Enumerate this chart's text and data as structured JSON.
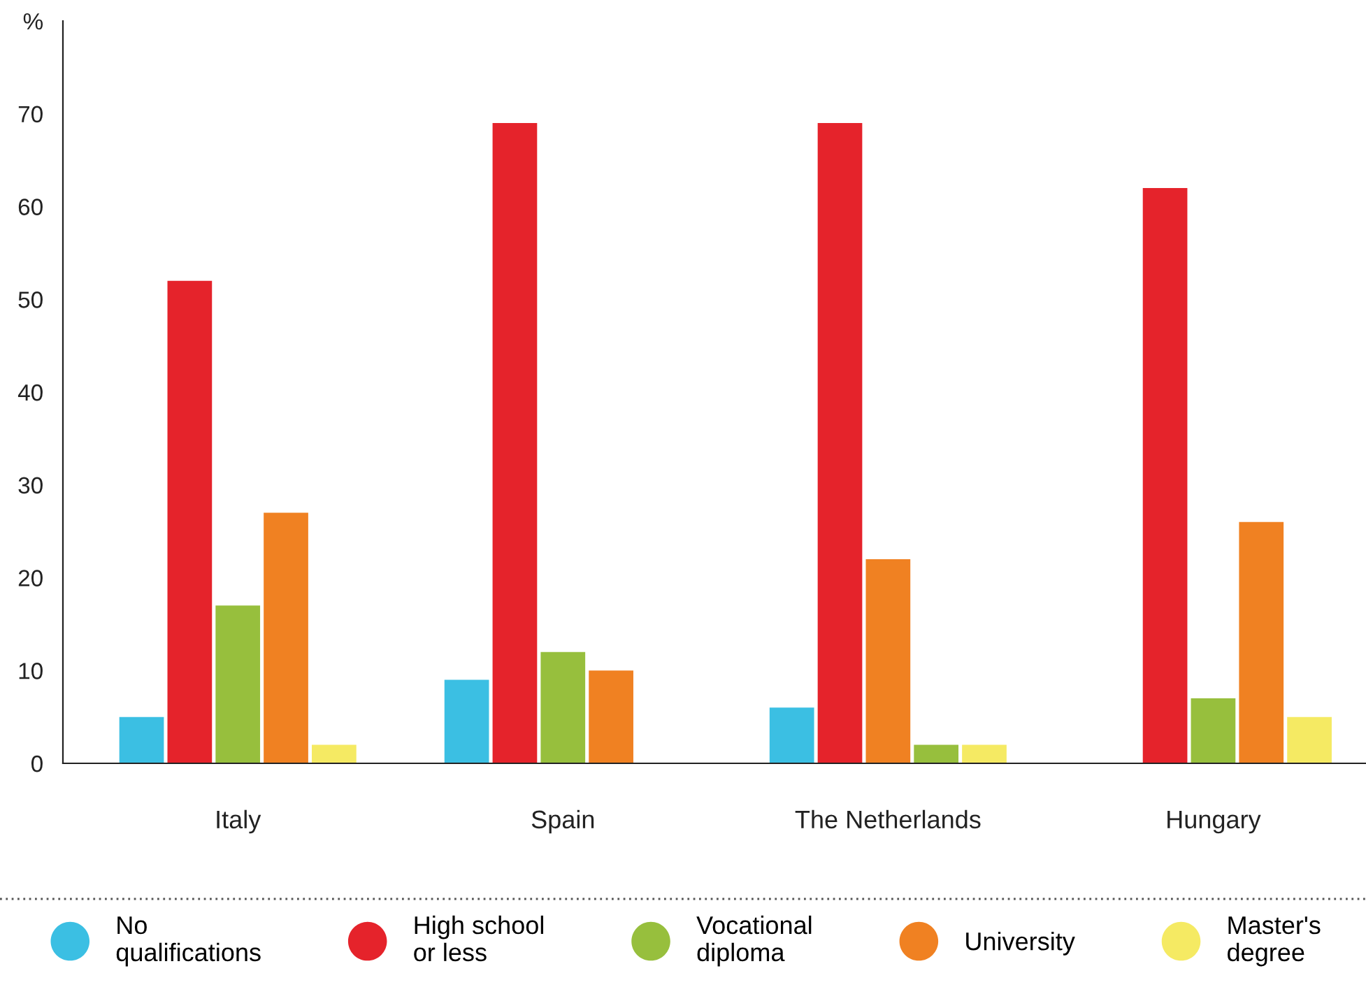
{
  "chart_data": {
    "type": "bar",
    "categories": [
      "Italy",
      "Spain",
      "The Netherlands",
      "Hungary"
    ],
    "series": [
      {
        "name": "No\nqualifications",
        "color": "#3bbfe3",
        "values": [
          5,
          9,
          6,
          null
        ]
      },
      {
        "name": "High school\nor less",
        "color": "#e5232b",
        "values": [
          52,
          69,
          69,
          62
        ]
      },
      {
        "name": "Vocational\ndiploma",
        "color": "#97bf3d",
        "values": [
          17,
          12,
          22,
          7
        ],
        "colors": [
          "#97bf3d",
          "#97bf3d",
          "#f08122",
          "#97bf3d"
        ]
      },
      {
        "name": "University",
        "color": "#f08122",
        "values": [
          27,
          10,
          2,
          26
        ],
        "colors": [
          "#f08122",
          "#f08122",
          "#97bf3d",
          "#f08122"
        ]
      },
      {
        "name": "Master's\ndegree",
        "color": "#f5ea63",
        "values": [
          2,
          null,
          2,
          5
        ]
      }
    ],
    "ylim": [
      0,
      80
    ],
    "yticks": [
      0,
      10,
      20,
      30,
      40,
      50,
      60,
      70,
      {
        "value": 80,
        "label": "%"
      }
    ],
    "grid": false,
    "legend": "bottom"
  }
}
